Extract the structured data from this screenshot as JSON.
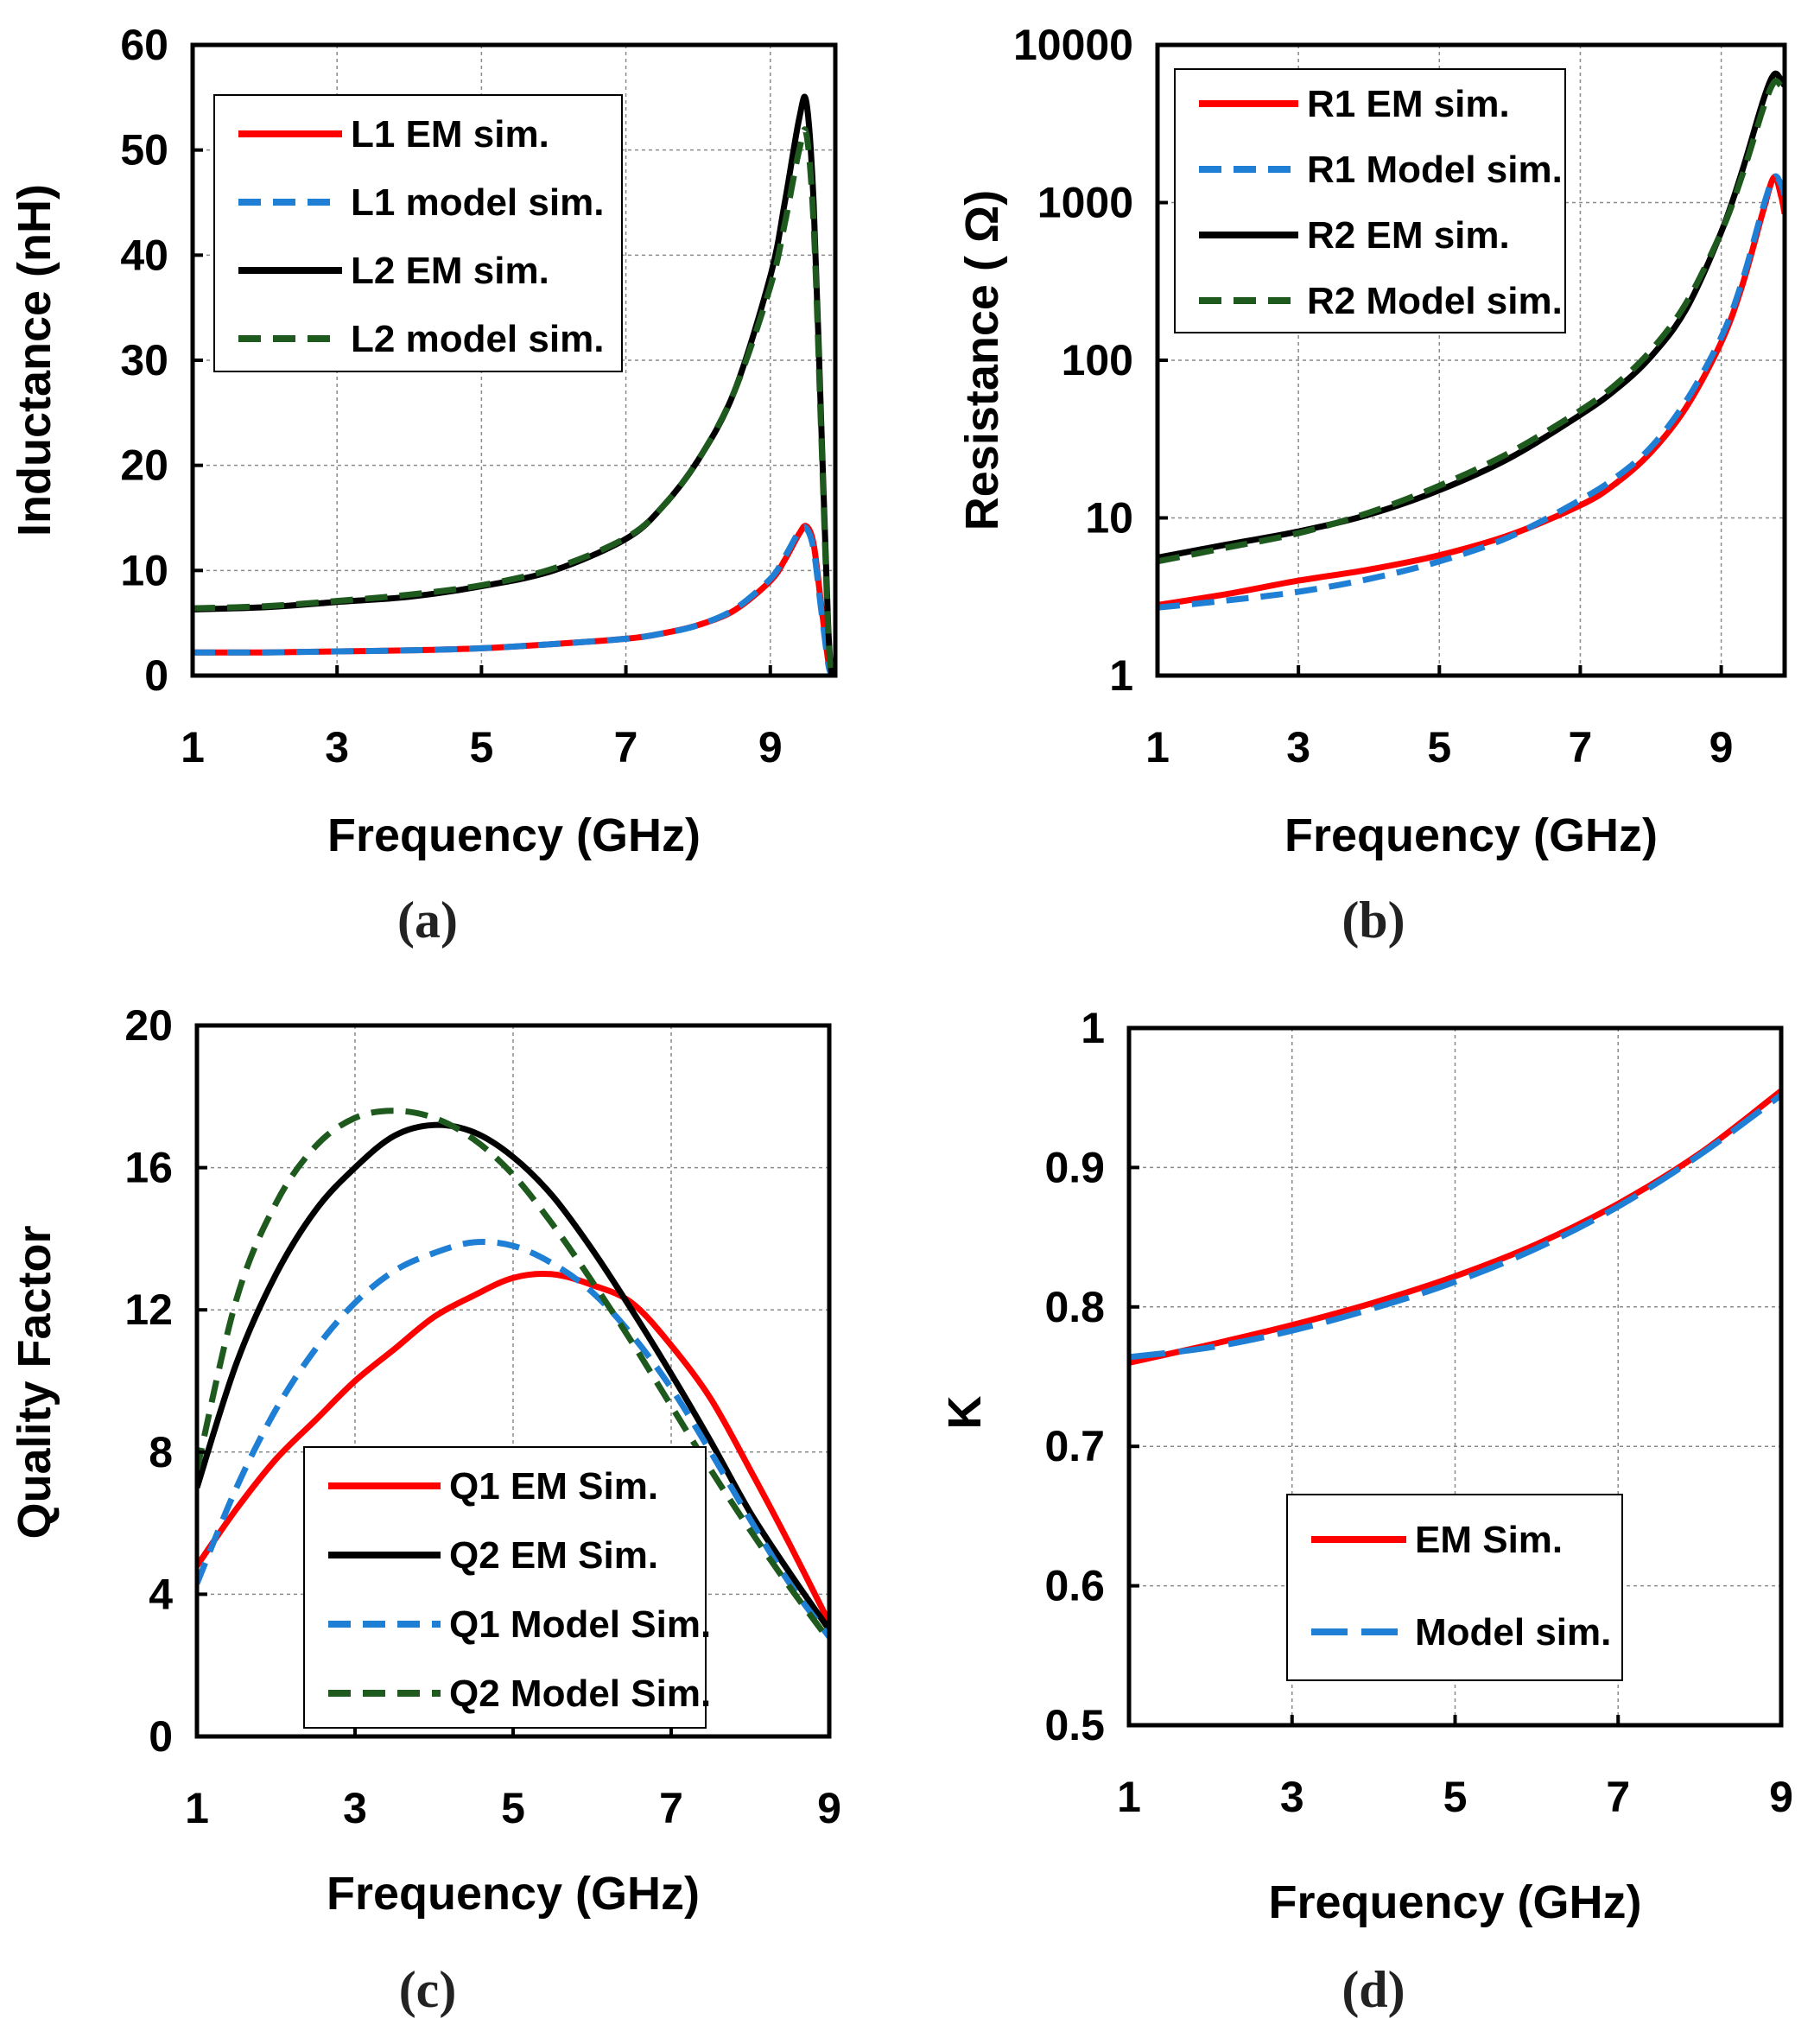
{
  "chart_data": [
    {
      "panel": "a",
      "caption": "(a)",
      "type": "line",
      "xlabel": "Frequency (GHz)",
      "ylabel": "Inductance (nH)",
      "xlim": [
        1,
        9.9
      ],
      "ylim": [
        0,
        60
      ],
      "xticks": [
        1,
        3,
        5,
        7,
        9
      ],
      "yticks": [
        0,
        10,
        20,
        30,
        40,
        50,
        60
      ],
      "xtick_labels": [
        "1",
        "3",
        "5",
        "7",
        "9"
      ],
      "ytick_labels": [
        "0",
        "10",
        "20",
        "30",
        "40",
        "50",
        "60"
      ],
      "grid": true,
      "legend_position": "top-left",
      "series": [
        {
          "name": "L1 EM sim.",
          "color": "#ff0000",
          "dash": "solid",
          "x": [
            1,
            2,
            3,
            4,
            5,
            6,
            7,
            7.5,
            8,
            8.5,
            9,
            9.2,
            9.4,
            9.5,
            9.6,
            9.7,
            9.8,
            9.85
          ],
          "y": [
            2.2,
            2.2,
            2.3,
            2.4,
            2.6,
            3.0,
            3.5,
            4.0,
            4.8,
            6.2,
            9.0,
            11.0,
            13.5,
            14.2,
            12.5,
            7.0,
            1.5,
            0
          ]
        },
        {
          "name": "L1  model sim.",
          "color": "#1f7fd4",
          "dash": "dashed",
          "x": [
            1,
            2,
            3,
            4,
            5,
            6,
            7,
            7.5,
            8,
            8.5,
            9,
            9.2,
            9.4,
            9.5,
            9.6,
            9.7,
            9.8,
            9.85
          ],
          "y": [
            2.2,
            2.2,
            2.3,
            2.4,
            2.6,
            3.0,
            3.5,
            4.0,
            4.8,
            6.3,
            9.2,
            11.3,
            13.7,
            14.0,
            12.0,
            6.5,
            1.2,
            0
          ]
        },
        {
          "name": "L2 EM sim.",
          "color": "#000000",
          "dash": "solid",
          "x": [
            1,
            2,
            3,
            4,
            5,
            6,
            7,
            7.5,
            8,
            8.5,
            9,
            9.2,
            9.4,
            9.5,
            9.6,
            9.7,
            9.8,
            9.85
          ],
          "y": [
            6.3,
            6.5,
            7.0,
            7.5,
            8.5,
            10.0,
            13.0,
            16.0,
            20.5,
            27.0,
            38.0,
            45.0,
            53.0,
            54.5,
            45.0,
            25.0,
            5.0,
            0
          ]
        },
        {
          "name": "L2  model sim.",
          "color": "#1e5a1e",
          "dash": "dashed",
          "x": [
            1,
            2,
            3,
            4,
            5,
            6,
            7,
            7.5,
            8,
            8.5,
            9,
            9.2,
            9.4,
            9.5,
            9.6,
            9.7,
            9.8,
            9.85
          ],
          "y": [
            6.4,
            6.6,
            7.1,
            7.7,
            8.6,
            10.2,
            13.1,
            16.0,
            20.5,
            27.0,
            37.0,
            43.0,
            50.0,
            51.5,
            43.0,
            24.0,
            4.5,
            0
          ]
        }
      ]
    },
    {
      "panel": "b",
      "caption": "(b)",
      "type": "line",
      "yscale": "log",
      "xlabel": "Frequency (GHz)",
      "ylabel": "Resistance ( Ω)",
      "xlim": [
        1,
        9.9
      ],
      "ylim": [
        1,
        10000
      ],
      "xticks": [
        1,
        3,
        5,
        7,
        9
      ],
      "yticks": [
        1,
        10,
        100,
        1000,
        10000
      ],
      "xtick_labels": [
        "1",
        "3",
        "5",
        "7",
        "9"
      ],
      "ytick_labels": [
        "1",
        "10",
        "100",
        "1000",
        "10000"
      ],
      "grid": true,
      "legend_position": "top-left",
      "series": [
        {
          "name": "R1 EM sim.",
          "color": "#ff0000",
          "dash": "solid",
          "x": [
            1,
            2,
            3,
            4,
            5,
            6,
            7,
            7.5,
            8,
            8.5,
            9,
            9.3,
            9.6,
            9.75,
            9.85,
            9.9
          ],
          "y": [
            2.8,
            3.3,
            4.0,
            4.7,
            5.8,
            7.8,
            12,
            16.5,
            26,
            50,
            130,
            300,
            900,
            1450,
            1100,
            850
          ]
        },
        {
          "name": "R1 Model sim.",
          "color": "#1f7fd4",
          "dash": "dashed",
          "x": [
            1,
            2,
            3,
            4,
            5,
            6,
            7,
            7.5,
            8,
            8.5,
            9,
            9.3,
            9.6,
            9.75,
            9.85,
            9.9
          ],
          "y": [
            2.7,
            3.0,
            3.4,
            4.1,
            5.3,
            7.6,
            13,
            18,
            28,
            55,
            140,
            320,
            950,
            1450,
            1300,
            1100
          ]
        },
        {
          "name": "R2 EM sim.",
          "color": "#000000",
          "dash": "solid",
          "x": [
            1,
            2,
            3,
            4,
            5,
            6,
            7,
            7.5,
            8,
            8.5,
            9,
            9.3,
            9.6,
            9.75,
            9.85,
            9.9
          ],
          "y": [
            5.6,
            6.8,
            8.2,
            10.5,
            15,
            24,
            45,
            65,
            105,
            210,
            650,
            1600,
            4500,
            6500,
            6000,
            5500
          ]
        },
        {
          "name": "R2 Model sim.",
          "color": "#1e5a1e",
          "dash": "dashed",
          "x": [
            1,
            2,
            3,
            4,
            5,
            6,
            7,
            7.5,
            8,
            8.5,
            9,
            9.3,
            9.6,
            9.75,
            9.85,
            9.9
          ],
          "y": [
            5.3,
            6.5,
            8.0,
            10.8,
            16,
            26,
            48,
            70,
            115,
            230,
            650,
            1500,
            4000,
            5800,
            5500,
            5200
          ]
        }
      ]
    },
    {
      "panel": "c",
      "caption": "(c)",
      "type": "line",
      "xlabel": "Frequency (GHz)",
      "ylabel": "Quality Factor",
      "xlim": [
        1,
        9
      ],
      "ylim": [
        0,
        20
      ],
      "xticks": [
        1,
        3,
        5,
        7,
        9
      ],
      "yticks": [
        0,
        4,
        8,
        12,
        16,
        20
      ],
      "xtick_labels": [
        "1",
        "3",
        "5",
        "7",
        "9"
      ],
      "ytick_labels": [
        "0",
        "4",
        "8",
        "12",
        "16",
        "20"
      ],
      "grid": true,
      "legend_position": "bottom-center",
      "series": [
        {
          "name": "Q1 EM Sim.",
          "color": "#ff0000",
          "dash": "solid",
          "x": [
            1,
            1.5,
            2,
            2.5,
            3,
            3.5,
            4,
            4.5,
            5,
            5.5,
            6,
            6.5,
            7,
            7.5,
            8,
            8.5,
            9
          ],
          "y": [
            4.8,
            6.4,
            7.8,
            8.9,
            10.0,
            10.9,
            11.8,
            12.4,
            12.9,
            13.0,
            12.7,
            12.2,
            11.0,
            9.5,
            7.5,
            5.4,
            3.2
          ]
        },
        {
          "name": "Q2 EM Sim.",
          "color": "#000000",
          "dash": "solid",
          "x": [
            1,
            1.5,
            2,
            2.5,
            3,
            3.5,
            4,
            4.5,
            5,
            5.5,
            6,
            6.5,
            7,
            7.5,
            8,
            8.5,
            9
          ],
          "y": [
            7.0,
            10.5,
            13.0,
            14.8,
            16.0,
            16.9,
            17.2,
            17.0,
            16.3,
            15.2,
            13.7,
            12.0,
            10.2,
            8.3,
            6.3,
            4.6,
            3.0
          ]
        },
        {
          "name": "Q1 Model Sim.",
          "color": "#1f7fd4",
          "dash": "dashed",
          "x": [
            1,
            1.5,
            2,
            2.5,
            3,
            3.5,
            4,
            4.5,
            5,
            5.5,
            6,
            6.5,
            7,
            7.5,
            8,
            8.5,
            9
          ],
          "y": [
            4.3,
            7.0,
            9.2,
            10.9,
            12.2,
            13.1,
            13.6,
            13.9,
            13.8,
            13.3,
            12.5,
            11.3,
            9.8,
            8.0,
            6.1,
            4.3,
            2.8
          ]
        },
        {
          "name": "Q2 Model Sim.",
          "color": "#1e5a1e",
          "dash": "dashed",
          "x": [
            1,
            1.5,
            2,
            2.5,
            3,
            3.5,
            4,
            4.5,
            5,
            5.5,
            6,
            6.5,
            7,
            7.5,
            8,
            8.5,
            9
          ],
          "y": [
            7.5,
            12.3,
            15.0,
            16.6,
            17.4,
            17.6,
            17.4,
            16.8,
            15.8,
            14.4,
            12.8,
            11.1,
            9.3,
            7.5,
            5.8,
            4.2,
            2.7
          ]
        }
      ]
    },
    {
      "panel": "d",
      "caption": "(d)",
      "type": "line",
      "xlabel": "Frequency (GHz)",
      "ylabel": "K",
      "xlim": [
        1,
        9
      ],
      "ylim": [
        0.5,
        1
      ],
      "xticks": [
        1,
        3,
        5,
        7,
        9
      ],
      "yticks": [
        0.5,
        0.6,
        0.7,
        0.8,
        0.9,
        1
      ],
      "xtick_labels": [
        "1",
        "3",
        "5",
        "7",
        "9"
      ],
      "ytick_labels": [
        "0.5",
        "0.6",
        "0.7",
        "0.8",
        "0.9",
        "1"
      ],
      "grid": true,
      "legend_position": "bottom-right",
      "series": [
        {
          "name": "EM Sim.",
          "color": "#ff0000",
          "dash": "solid",
          "x": [
            1,
            2,
            3,
            4,
            5,
            6,
            7,
            8,
            9
          ],
          "y": [
            0.76,
            0.773,
            0.787,
            0.803,
            0.822,
            0.845,
            0.874,
            0.91,
            0.955
          ]
        },
        {
          "name": "Model sim.",
          "color": "#1f7fd4",
          "dash": "longdash",
          "x": [
            1,
            2,
            3,
            4,
            5,
            6,
            7,
            8,
            9
          ],
          "y": [
            0.764,
            0.771,
            0.783,
            0.799,
            0.818,
            0.842,
            0.872,
            0.909,
            0.952
          ]
        }
      ]
    }
  ]
}
